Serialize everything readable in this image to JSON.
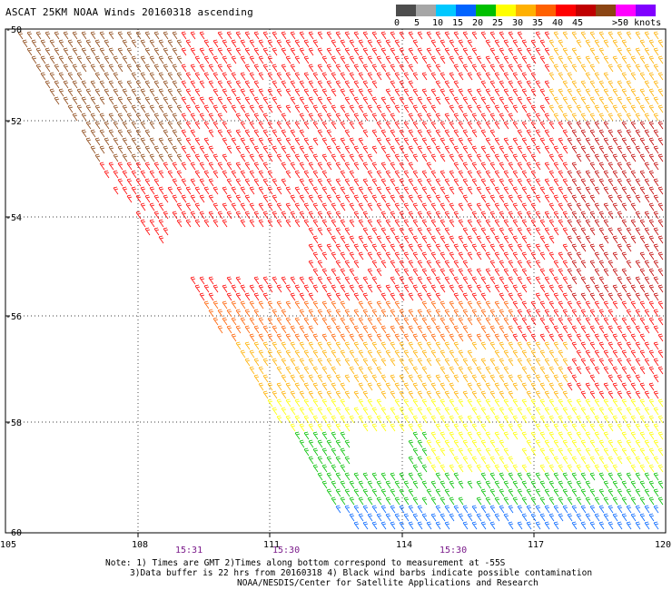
{
  "title": "ASCAT 25KM NOAA Winds 20160318 ascending",
  "legend": {
    "colors": [
      "#4d4d4d",
      "#a6a6a6",
      "#00c8ff",
      "#0064ff",
      "#00c000",
      "#ffff00",
      "#ffb000",
      "#ff6000",
      "#ff0000",
      "#c00000",
      "#8b4513",
      "#ff00ff",
      "#8000ff",
      "#5a00a0"
    ],
    "labels": [
      "0",
      "5",
      "10",
      "15",
      "20",
      "25",
      "30",
      "35",
      "40",
      "45",
      ">50 knots"
    ]
  },
  "axes": {
    "lon_labels": [
      "105",
      "108",
      "111",
      "114",
      "117",
      "120"
    ],
    "lat_labels": [
      "-50",
      "-52",
      "-54",
      "-56",
      "-58",
      "-60"
    ]
  },
  "times": [
    "15:31",
    "15:30",
    "15:30"
  ],
  "notes": {
    "line1": "Note: 1) Times are GMT 2)Times along bottom correspond to measurement at -55S",
    "line2": "3)Data buffer is 22 hrs from 20160318 4) Black wind barbs indicate possible contamination",
    "line3": "NOAA/NESDIS/Center for Satellite Applications and Research"
  }
}
